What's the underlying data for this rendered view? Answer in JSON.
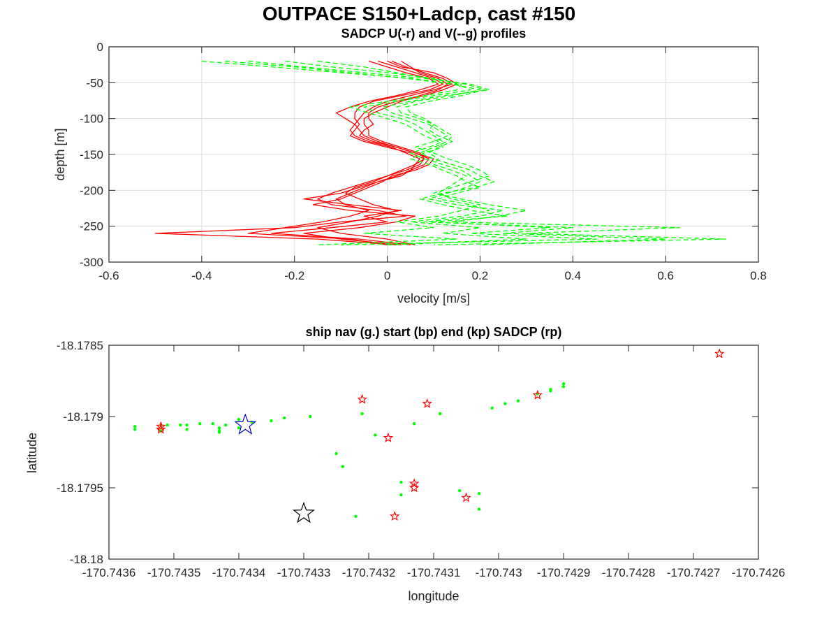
{
  "figure_title": "OUTPACE S150+Ladcp, cast #150",
  "colors": {
    "u_profile": "#ff0000",
    "v_profile": "#00ff00",
    "ship_nav": "#00ff00",
    "start_marker": "#0000cc",
    "end_marker": "#000000",
    "sadcp_marker": "#ff0000",
    "grid": "#dcdcdc",
    "axis": "#262626"
  },
  "chart_data": [
    {
      "type": "line",
      "title": "SADCP U(-r) and V(--g) profiles",
      "xlabel": "velocity [m/s]",
      "ylabel": "depth [m]",
      "xlim": [
        -0.6,
        0.8
      ],
      "ylim": [
        -300,
        0
      ],
      "xticks": [
        -0.6,
        -0.4,
        -0.2,
        0,
        0.2,
        0.4,
        0.6,
        0.8
      ],
      "xtick_labels": [
        "-0.6",
        "-0.4",
        "-0.2",
        "0",
        "0.2",
        "0.4",
        "0.6",
        "0.8"
      ],
      "yticks": [
        0,
        -50,
        -100,
        -150,
        -200,
        -250,
        -300
      ],
      "ytick_labels": [
        "0",
        "-50",
        "-100",
        "-150",
        "-200",
        "-250",
        "-300"
      ],
      "grid": true,
      "depth": [
        -20,
        -28,
        -36,
        -44,
        -52,
        -60,
        -68,
        -76,
        -84,
        -92,
        -100,
        -108,
        -116,
        -124,
        -132,
        -140,
        -148,
        -156,
        -164,
        -172,
        -180,
        -188,
        -196,
        -204,
        -212,
        -220,
        -228,
        -236,
        -244,
        -252,
        -260,
        -268,
        -276
      ],
      "series": [
        {
          "component": "U",
          "style": "solid",
          "values": [
            -0.02,
            0.02,
            0.06,
            0.1,
            0.12,
            0.09,
            0.03,
            -0.03,
            -0.06,
            -0.07,
            -0.07,
            -0.06,
            -0.07,
            -0.08,
            -0.05,
            0.0,
            0.05,
            0.08,
            0.07,
            0.04,
            0.0,
            -0.04,
            -0.08,
            -0.12,
            -0.15,
            -0.12,
            -0.02,
            0.04,
            -0.1,
            -0.2,
            -0.5,
            -0.15,
            0.02
          ]
        },
        {
          "component": "U",
          "style": "solid",
          "values": [
            0.01,
            0.04,
            0.08,
            0.12,
            0.14,
            0.1,
            0.05,
            0.0,
            -0.03,
            -0.05,
            -0.06,
            -0.07,
            -0.06,
            -0.05,
            -0.02,
            0.02,
            0.06,
            0.09,
            0.08,
            0.05,
            0.02,
            -0.02,
            -0.06,
            -0.1,
            -0.18,
            -0.08,
            0.03,
            -0.05,
            0.0,
            -0.12,
            -0.25,
            -0.06,
            0.05
          ]
        },
        {
          "component": "U",
          "style": "solid",
          "values": [
            0.03,
            0.05,
            0.07,
            0.11,
            0.13,
            0.11,
            0.07,
            0.03,
            0.0,
            -0.03,
            -0.05,
            -0.05,
            -0.04,
            -0.04,
            -0.01,
            0.03,
            0.07,
            0.08,
            0.06,
            0.03,
            0.0,
            -0.03,
            -0.07,
            -0.09,
            -0.06,
            -0.03,
            0.02,
            -0.02,
            -0.08,
            -0.15,
            -0.1,
            0.0,
            0.06
          ]
        },
        {
          "component": "U",
          "style": "solid",
          "values": [
            -0.04,
            0.0,
            0.04,
            0.09,
            0.11,
            0.07,
            0.02,
            -0.04,
            -0.08,
            -0.11,
            -0.09,
            -0.07,
            -0.08,
            -0.07,
            -0.04,
            0.01,
            0.04,
            0.07,
            0.06,
            0.05,
            0.03,
            -0.02,
            -0.05,
            -0.08,
            -0.11,
            -0.09,
            -0.04,
            -0.08,
            -0.14,
            -0.22,
            -0.3,
            -0.08,
            0.0
          ]
        },
        {
          "component": "U",
          "style": "solid",
          "values": [
            0.0,
            0.03,
            0.1,
            0.13,
            0.15,
            0.12,
            0.08,
            0.02,
            -0.02,
            -0.04,
            -0.04,
            -0.03,
            -0.05,
            -0.06,
            -0.03,
            0.02,
            0.06,
            0.1,
            0.09,
            0.06,
            0.01,
            -0.01,
            -0.04,
            -0.07,
            -0.1,
            -0.16,
            -0.08,
            0.06,
            0.02,
            -0.06,
            -0.18,
            -0.1,
            0.03
          ]
        },
        {
          "component": "V",
          "style": "dashed",
          "values": [
            -0.4,
            -0.25,
            -0.1,
            0.05,
            0.15,
            0.18,
            0.1,
            0.02,
            -0.05,
            -0.02,
            0.03,
            0.06,
            0.08,
            0.1,
            0.12,
            0.09,
            0.05,
            0.08,
            0.12,
            0.16,
            0.18,
            0.2,
            0.17,
            0.13,
            0.09,
            0.15,
            0.25,
            0.2,
            0.08,
            0.4,
            0.25,
            0.6,
            0.2
          ]
        },
        {
          "component": "V",
          "style": "dashed",
          "values": [
            -0.3,
            -0.18,
            -0.05,
            0.08,
            0.18,
            0.22,
            0.12,
            0.05,
            -0.01,
            0.01,
            0.05,
            0.09,
            0.11,
            0.13,
            0.1,
            0.06,
            0.1,
            0.13,
            0.17,
            0.2,
            0.22,
            0.18,
            0.14,
            0.1,
            0.16,
            0.22,
            0.3,
            0.24,
            0.14,
            0.63,
            0.3,
            0.73,
            0.1
          ]
        },
        {
          "component": "V",
          "style": "dashed",
          "values": [
            -0.22,
            -0.12,
            0.0,
            0.1,
            0.16,
            0.15,
            0.08,
            0.0,
            -0.08,
            -0.04,
            0.0,
            0.04,
            0.06,
            0.08,
            0.11,
            0.12,
            0.08,
            0.05,
            0.09,
            0.12,
            0.15,
            0.17,
            0.2,
            0.15,
            0.11,
            0.18,
            0.22,
            0.16,
            0.05,
            0.2,
            0.12,
            0.3,
            0.0
          ]
        },
        {
          "component": "V",
          "style": "dashed",
          "values": [
            -0.35,
            -0.2,
            -0.08,
            0.04,
            0.14,
            0.2,
            0.14,
            0.06,
            0.02,
            0.03,
            0.07,
            0.1,
            0.12,
            0.14,
            0.13,
            0.1,
            0.07,
            0.1,
            0.14,
            0.18,
            0.2,
            0.23,
            0.19,
            0.12,
            0.07,
            0.12,
            0.18,
            0.26,
            0.1,
            0.35,
            0.18,
            0.45,
            -0.1
          ]
        },
        {
          "component": "V",
          "style": "dashed",
          "values": [
            -0.15,
            -0.05,
            0.02,
            0.09,
            0.17,
            0.21,
            0.16,
            0.09,
            0.04,
            0.05,
            0.08,
            0.1,
            0.09,
            0.11,
            0.14,
            0.11,
            0.09,
            0.11,
            0.1,
            0.14,
            0.17,
            0.15,
            0.13,
            0.11,
            0.14,
            0.2,
            0.16,
            0.11,
            0.02,
            0.1,
            -0.05,
            0.15,
            -0.15
          ]
        }
      ]
    },
    {
      "type": "scatter",
      "title": "ship nav (g.) start (bp) end (kp) SADCP (rp)",
      "xlabel": "longitude",
      "ylabel": "latitude",
      "xlim": [
        -170.7436,
        -170.7426
      ],
      "ylim": [
        -18.18,
        -18.1785
      ],
      "xticks": [
        -170.7436,
        -170.7435,
        -170.7434,
        -170.7433,
        -170.7432,
        -170.7431,
        -170.743,
        -170.7429,
        -170.7428,
        -170.7427,
        -170.7426
      ],
      "xtick_labels": [
        "-170.7436",
        "-170.7435",
        "-170.7434",
        "-170.7433",
        "-170.7432",
        "-170.7431",
        "-170.743",
        "-170.7429",
        "-170.7428",
        "-170.7427",
        "-170.7426"
      ],
      "yticks": [
        -18.1785,
        -18.179,
        -18.1795,
        -18.18
      ],
      "ytick_labels": [
        "-18.1785",
        "-18.179",
        "-18.1795",
        "-18.18"
      ],
      "grid": false,
      "ship_nav": [
        [
          -170.74356,
          -18.17907
        ],
        [
          -170.74356,
          -18.17909
        ],
        [
          -170.74352,
          -18.17906
        ],
        [
          -170.74352,
          -18.1791
        ],
        [
          -170.74351,
          -18.17906
        ],
        [
          -170.74349,
          -18.17906
        ],
        [
          -170.74348,
          -18.17906
        ],
        [
          -170.74348,
          -18.17909
        ],
        [
          -170.74346,
          -18.17905
        ],
        [
          -170.74344,
          -18.17905
        ],
        [
          -170.74343,
          -18.17908
        ],
        [
          -170.74343,
          -18.1791
        ],
        [
          -170.74343,
          -18.17911
        ],
        [
          -170.74342,
          -18.17906
        ],
        [
          -170.7434,
          -18.17908
        ],
        [
          -170.7434,
          -18.17902
        ],
        [
          -170.74338,
          -18.17904
        ],
        [
          -170.74335,
          -18.17903
        ],
        [
          -170.74333,
          -18.17901
        ],
        [
          -170.74329,
          -18.179
        ],
        [
          -170.74325,
          -18.17926
        ],
        [
          -170.74324,
          -18.17935
        ],
        [
          -170.74322,
          -18.1797
        ],
        [
          -170.74321,
          -18.17898
        ],
        [
          -170.74319,
          -18.17913
        ],
        [
          -170.74315,
          -18.17946
        ],
        [
          -170.74315,
          -18.17955
        ],
        [
          -170.74313,
          -18.17905
        ],
        [
          -170.74309,
          -18.17898
        ],
        [
          -170.74306,
          -18.17952
        ],
        [
          -170.74303,
          -18.17954
        ],
        [
          -170.74303,
          -18.17965
        ],
        [
          -170.74301,
          -18.17894
        ],
        [
          -170.74299,
          -18.17891
        ],
        [
          -170.74297,
          -18.17889
        ],
        [
          -170.74294,
          -18.17884
        ],
        [
          -170.74292,
          -18.17882
        ],
        [
          -170.74292,
          -18.17881
        ],
        [
          -170.7429,
          -18.17879
        ],
        [
          -170.7429,
          -18.17877
        ]
      ],
      "sadcp": [
        [
          -170.74352,
          -18.17907
        ],
        [
          -170.74352,
          -18.17909
        ],
        [
          -170.74321,
          -18.17888
        ],
        [
          -170.74316,
          -18.1797
        ],
        [
          -170.74317,
          -18.17915
        ],
        [
          -170.74313,
          -18.17947
        ],
        [
          -170.74313,
          -18.1795
        ],
        [
          -170.74311,
          -18.17891
        ],
        [
          -170.74305,
          -18.17957
        ],
        [
          -170.74294,
          -18.17885
        ],
        [
          -170.74266,
          -18.17856
        ]
      ],
      "start": [
        -170.74339,
        -18.17906
      ],
      "end": [
        -170.7433,
        -18.17968
      ]
    }
  ]
}
